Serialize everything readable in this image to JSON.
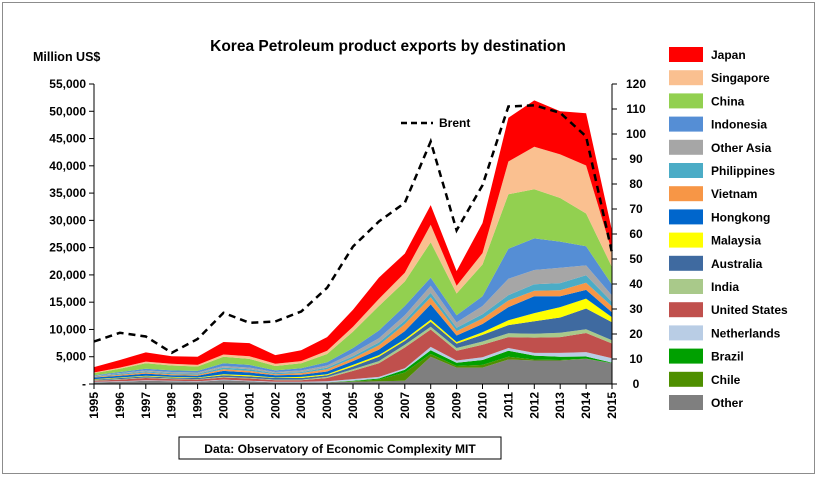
{
  "chart_data": {
    "type": "area",
    "title": "Korea Petroleum product exports by destination",
    "ylabel": "Million US$",
    "source": "Data: Observatory of Economic Complexity MIT",
    "x": [
      "1995",
      "1996",
      "1997",
      "1998",
      "1999",
      "2000",
      "2001",
      "2002",
      "2003",
      "2004",
      "2005",
      "2006",
      "2007",
      "2008",
      "2009",
      "2010",
      "2011",
      "2012",
      "2013",
      "2014",
      "2015"
    ],
    "ylim": [
      0,
      55000
    ],
    "yticks": [
      "-",
      "5,000",
      "10,000",
      "15,000",
      "20,000",
      "25,000",
      "30,000",
      "35,000",
      "40,000",
      "45,000",
      "50,000",
      "55,000"
    ],
    "y2lim": [
      0,
      120
    ],
    "y2ticks": [
      "0",
      "10",
      "20",
      "30",
      "40",
      "50",
      "60",
      "70",
      "80",
      "90",
      "100",
      "110",
      "120"
    ],
    "stacked": true,
    "series": [
      {
        "name": "Other",
        "color": "#7f7f7f",
        "values": [
          300,
          400,
          600,
          500,
          400,
          700,
          500,
          300,
          300,
          300,
          400,
          500,
          600,
          5000,
          3000,
          3000,
          4500,
          4300,
          4300,
          4600,
          3800
        ]
      },
      {
        "name": "Chile",
        "color": "#4e8f00",
        "values": [
          0,
          0,
          0,
          0,
          0,
          0,
          0,
          0,
          0,
          0,
          100,
          300,
          1500,
          500,
          300,
          500,
          500,
          200,
          100,
          50,
          30
        ]
      },
      {
        "name": "Brazil",
        "color": "#00a000",
        "values": [
          0,
          0,
          0,
          0,
          0,
          0,
          0,
          0,
          0,
          0,
          100,
          200,
          500,
          700,
          600,
          900,
          1100,
          700,
          600,
          400,
          100
        ]
      },
      {
        "name": "Netherlands",
        "color": "#b9cde5",
        "values": [
          100,
          100,
          100,
          100,
          100,
          100,
          100,
          100,
          100,
          200,
          300,
          300,
          300,
          600,
          400,
          500,
          500,
          500,
          700,
          800,
          800
        ]
      },
      {
        "name": "United States",
        "color": "#c0504d",
        "values": [
          200,
          300,
          400,
          300,
          300,
          400,
          400,
          300,
          300,
          600,
          1500,
          2500,
          3800,
          3200,
          1800,
          2300,
          2000,
          2800,
          2900,
          3500,
          2700
        ]
      },
      {
        "name": "India",
        "color": "#a9c98a",
        "values": [
          100,
          100,
          100,
          100,
          100,
          100,
          100,
          100,
          100,
          200,
          300,
          400,
          500,
          500,
          500,
          600,
          700,
          700,
          800,
          700,
          600
        ]
      },
      {
        "name": "Australia",
        "color": "#3f6aa0",
        "values": [
          100,
          200,
          200,
          200,
          200,
          300,
          300,
          300,
          300,
          300,
          500,
          800,
          700,
          900,
          800,
          1200,
          1500,
          2300,
          2800,
          3800,
          3300
        ]
      },
      {
        "name": "Malaysia",
        "color": "#ffff00",
        "values": [
          100,
          100,
          100,
          100,
          100,
          200,
          200,
          100,
          200,
          200,
          300,
          300,
          300,
          400,
          300,
          500,
          900,
          1500,
          1900,
          1800,
          900
        ]
      },
      {
        "name": "Hongkong",
        "color": "#0066cc",
        "values": [
          300,
          300,
          400,
          300,
          300,
          600,
          500,
          400,
          400,
          500,
          700,
          1000,
          1500,
          2800,
          1200,
          1500,
          2400,
          3100,
          2000,
          1600,
          900
        ]
      },
      {
        "name": "Vietnam",
        "color": "#f79646",
        "values": [
          100,
          200,
          200,
          200,
          200,
          300,
          300,
          200,
          300,
          400,
          500,
          800,
          1300,
          1300,
          800,
          1000,
          1200,
          1000,
          1100,
          1300,
          1100
        ]
      },
      {
        "name": "Philippines",
        "color": "#4bacc6",
        "values": [
          100,
          200,
          200,
          200,
          200,
          300,
          300,
          200,
          200,
          300,
          400,
          500,
          600,
          800,
          600,
          800,
          1000,
          1200,
          1300,
          1400,
          800
        ]
      },
      {
        "name": "Other Asia",
        "color": "#a6a6a6",
        "values": [
          100,
          100,
          200,
          200,
          200,
          300,
          300,
          200,
          300,
          400,
          600,
          800,
          1000,
          1300,
          1000,
          1500,
          3000,
          2600,
          2800,
          1800,
          1200
        ]
      },
      {
        "name": "Indonesia",
        "color": "#558ed5",
        "values": [
          100,
          200,
          300,
          300,
          300,
          500,
          500,
          300,
          400,
          600,
          900,
          1400,
          1700,
          1500,
          1300,
          1800,
          5500,
          5800,
          4800,
          3500,
          2000
        ]
      },
      {
        "name": "China",
        "color": "#92d050",
        "values": [
          400,
          600,
          1000,
          900,
          800,
          1200,
          1100,
          800,
          900,
          1500,
          3000,
          4500,
          4500,
          6500,
          4000,
          5800,
          10000,
          9000,
          8000,
          6000,
          3200
        ]
      },
      {
        "name": "Singapore",
        "color": "#fac090",
        "values": [
          100,
          200,
          300,
          300,
          300,
          400,
          500,
          400,
          400,
          600,
          900,
          1300,
          1600,
          3200,
          1400,
          2100,
          6000,
          7800,
          8000,
          8800,
          2800
        ]
      },
      {
        "name": "Japan",
        "color": "#ff0000",
        "values": [
          1000,
          1400,
          1700,
          1400,
          1500,
          2300,
          2400,
          1600,
          2000,
          2500,
          3100,
          3900,
          3500,
          3600,
          2700,
          5500,
          8000,
          8500,
          7900,
          9600,
          3900
        ]
      }
    ],
    "brent": {
      "name": "Brent",
      "axis": "right",
      "values": [
        17,
        20.5,
        19,
        12.5,
        18,
        28.5,
        24.5,
        25,
        29,
        38.5,
        55,
        65,
        72.5,
        97,
        61.5,
        79.5,
        111,
        111.5,
        108.5,
        99,
        52.5
      ]
    },
    "legend_position": "right",
    "grid": false
  }
}
